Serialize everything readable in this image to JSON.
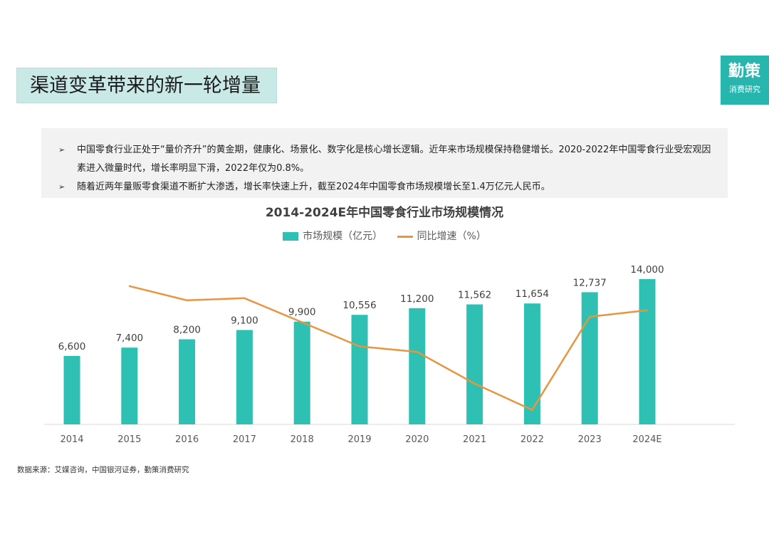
{
  "header": {
    "section_title": "渠道变革带来的新一轮增量",
    "logo_main": "勤策",
    "logo_sub": "消费研究"
  },
  "summary": {
    "bullets": [
      "中国零食行业正处于“量价齐升”的黄金期，健康化、场景化、数字化是核心增长逻辑。近年来市场规模保持稳健增长。2020-2022年中国零食行业受宏观因素进入微量时代，增长率明显下滑，2022年仅为0.8%。",
      "随着近两年量贩零食渠道不断扩大渗透，增长率快速上升，截至2024年中国零食市场规模增长至1.4万亿元人民币。"
    ],
    "bullet_marker": "➢"
  },
  "chart_data": {
    "type": "bar",
    "title": "2014-2024E年中国零食行业市场规模情况",
    "categories": [
      "2014",
      "2015",
      "2016",
      "2017",
      "2018",
      "2019",
      "2020",
      "2021",
      "2022",
      "2023",
      "2024E"
    ],
    "series": [
      {
        "name": "市场规模（亿元）",
        "type": "bar",
        "color": "#2ec0b2",
        "values": [
          6600,
          7400,
          8200,
          9100,
          9900,
          10556,
          11200,
          11562,
          11654,
          12737,
          14000
        ],
        "labels": [
          "6,600",
          "7,400",
          "8,200",
          "9,100",
          "9,900",
          "10,556",
          "11,200",
          "11,562",
          "11,654",
          "12,737",
          "14,000"
        ]
      },
      {
        "name": "同比增速（%）",
        "type": "line",
        "color": "#e8953f",
        "values": [
          null,
          12.1,
          10.8,
          11.0,
          8.8,
          6.6,
          6.1,
          3.2,
          0.8,
          9.3,
          9.9
        ]
      }
    ],
    "bar_ylim": [
      0,
      14000
    ],
    "line_ylim": [
      0,
      13
    ],
    "grid": false,
    "legend_position": "top-center"
  },
  "source": "数据来源：艾媒咨询，中国银河证券，勤策消费研究"
}
